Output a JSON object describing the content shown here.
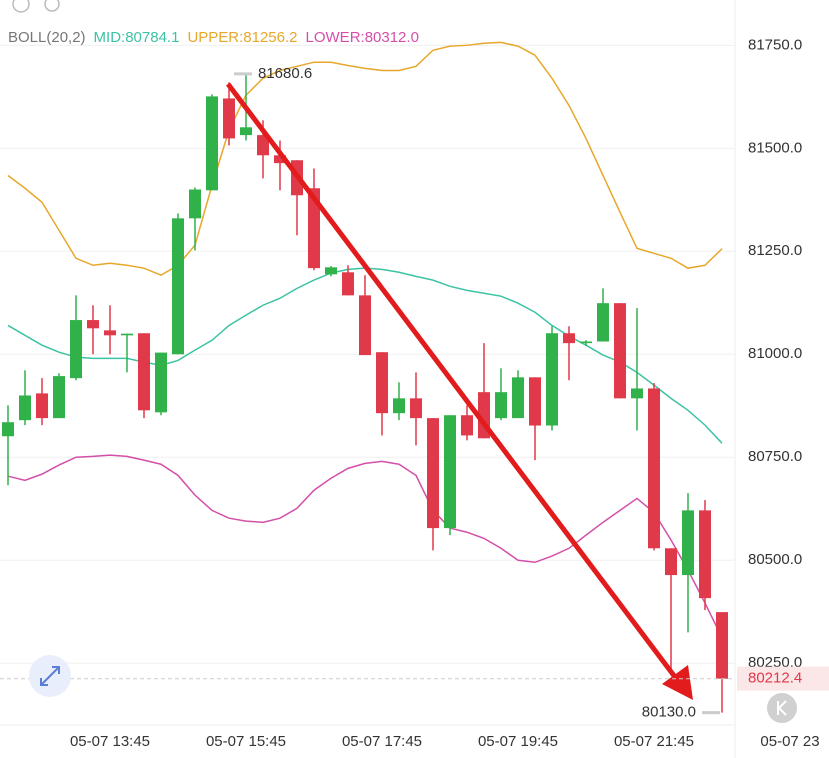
{
  "chart_data": {
    "type": "candlestick",
    "indicator": "BOLL(20,2)",
    "bands": [
      {
        "label": "MID:80784.1",
        "color": "#3cc3a4",
        "values": [
          81070,
          81046,
          81022,
          81005,
          80993,
          80990,
          80990,
          80990,
          80981,
          80973,
          80985,
          81010,
          81034,
          81070,
          81095,
          81119,
          81136,
          81160,
          81180,
          81197,
          81206,
          81209,
          81206,
          81199,
          81189,
          81180,
          81165,
          81155,
          81148,
          81141,
          81124,
          81102,
          81070,
          81044,
          81022,
          80998,
          80981,
          80956,
          80925,
          80893,
          80864,
          80828,
          80784.1
        ]
      },
      {
        "label": "UPPER:81256.2",
        "color": "#e8a72a",
        "values": [
          81434,
          81403,
          81369,
          81301,
          81233,
          81216,
          81221,
          81216,
          81209,
          81192,
          81216,
          81265,
          81410,
          81544,
          81629,
          81670,
          81689,
          81699,
          81709,
          81709,
          81701,
          81694,
          81689,
          81689,
          81699,
          81738,
          81748,
          81750,
          81755,
          81757,
          81748,
          81726,
          81670,
          81604,
          81524,
          81434,
          81345,
          81257,
          81245,
          81233,
          81209,
          81216,
          81256.2
        ]
      },
      {
        "label": "LOWER:80312.0",
        "color": "#d44fa8",
        "values": [
          80704,
          80694,
          80709,
          80731,
          80750,
          80752,
          80755,
          80752,
          80743,
          80733,
          80706,
          80658,
          80621,
          80602,
          80595,
          80592,
          80602,
          80626,
          80670,
          80699,
          80723,
          80735,
          80740,
          80733,
          80706,
          80621,
          80578,
          80568,
          80553,
          80529,
          80500,
          80495,
          80510,
          80529,
          80561,
          80592,
          80621,
          80650,
          80616,
          80549,
          80476,
          80396,
          80312.0
        ]
      }
    ],
    "open": [
      80801,
      80840,
      80905,
      80845,
      80942,
      81083,
      81058,
      81046,
      81051,
      80859,
      81000,
      81330,
      81398,
      81621,
      81532,
      81532,
      81483,
      81471,
      81403,
      81194,
      81199,
      81143,
      81005,
      80857,
      80893,
      80845,
      80578,
      80852,
      80908,
      80845,
      80845,
      80944,
      80827,
      81051,
      81027,
      81031,
      81124,
      80893,
      80917,
      80529,
      80464,
      80621,
      80374
    ],
    "high": [
      80876,
      80961,
      80942,
      80954,
      81143,
      81119,
      81119,
      81050,
      81051,
      81004,
      81342,
      81405,
      81631,
      81660,
      81680.6,
      81568,
      81519,
      81471,
      81451,
      81214,
      81216,
      81192,
      81005,
      80932,
      80956,
      80845,
      80852,
      80876,
      81027,
      80966,
      80961,
      80944,
      81068,
      81068,
      81034,
      81160,
      81124,
      81112,
      80930,
      80529,
      80663,
      80646,
      80374
    ],
    "low": [
      80682,
      80828,
      80828,
      80845,
      80937,
      81000,
      81000,
      80956,
      80845,
      80852,
      81000,
      81252,
      81398,
      81507,
      81519,
      81427,
      81398,
      81289,
      81204,
      81189,
      81143,
      80998,
      80803,
      80840,
      80779,
      80524,
      80561,
      80791,
      80796,
      80840,
      80845,
      80743,
      80815,
      80937,
      81020,
      81031,
      80893,
      80815,
      80524,
      80228,
      80325,
      80379,
      80130.0
    ],
    "close": [
      80835,
      80900,
      80845,
      80947,
      81083,
      81063,
      81046,
      81050,
      80864,
      81004,
      81330,
      81400,
      81626,
      81524,
      81551,
      81483,
      81464,
      81386,
      81209,
      81211,
      81143,
      80998,
      80857,
      80893,
      80845,
      80578,
      80852,
      80803,
      80796,
      80908,
      80944,
      80827,
      81051,
      81027,
      81031,
      81124,
      80893,
      80917,
      80529,
      80464,
      80621,
      80408,
      80212.4
    ],
    "up_color": "#31b14a",
    "down_color": "#e0394a",
    "high_marker": {
      "value": 81680.6,
      "label": "81680.6"
    },
    "low_marker": {
      "value": 80130.0,
      "label": "80130.0"
    },
    "last_price": {
      "value": 80212.4,
      "label": "80212.4"
    },
    "ylim": [
      80100,
      81860
    ],
    "yticks": [
      {
        "value": 81750,
        "label": "81750.0"
      },
      {
        "value": 81500,
        "label": "81500.0"
      },
      {
        "value": 81250,
        "label": "81250.0"
      },
      {
        "value": 81000,
        "label": "81000.0"
      },
      {
        "value": 80750,
        "label": "80750.0"
      },
      {
        "value": 80500,
        "label": "80500.0"
      },
      {
        "value": 80250,
        "label": "80250.0"
      }
    ],
    "xticks": [
      "05-07 13:45",
      "05-07 15:45",
      "05-07 17:45",
      "05-07 19:45",
      "05-07 21:45",
      "05-07 23"
    ],
    "grid": true
  }
}
